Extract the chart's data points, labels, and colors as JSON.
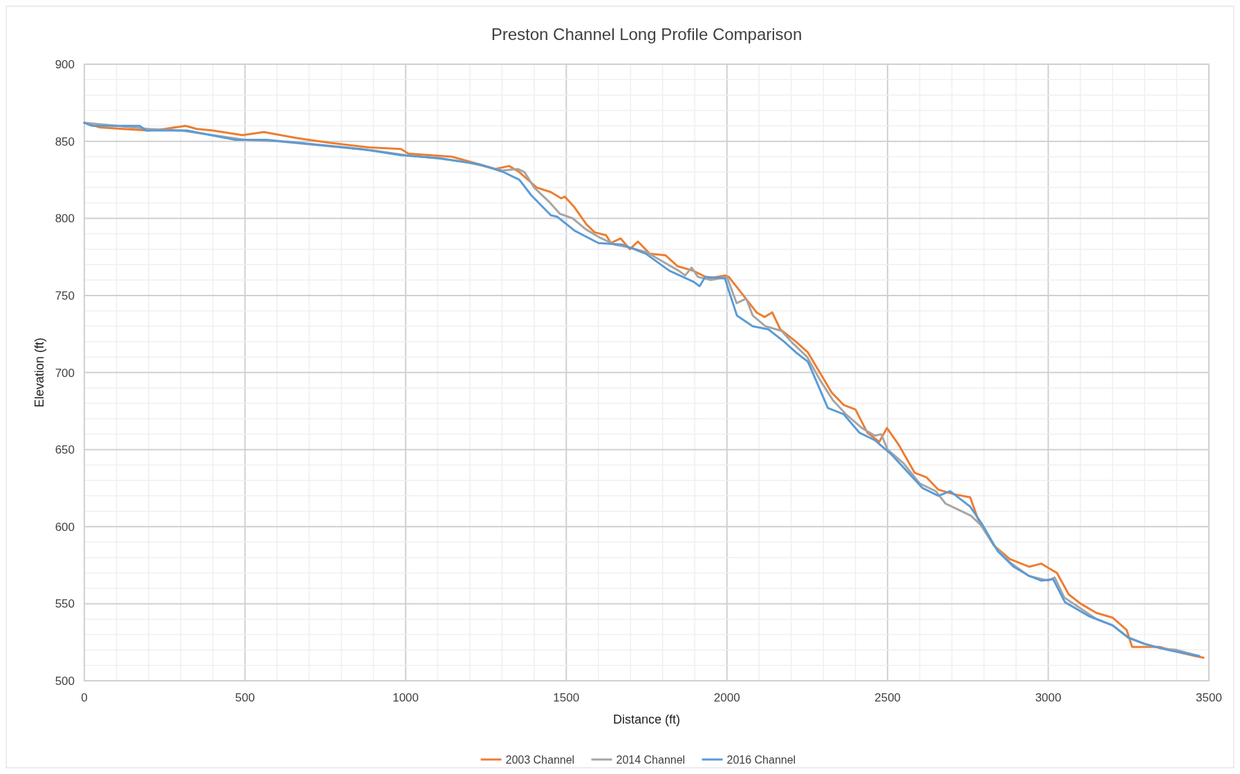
{
  "chart_data": {
    "type": "line",
    "title": "Preston Channel Long Profile Comparison",
    "xlabel": "Distance (ft)",
    "ylabel": "Elevation (ft)",
    "xlim": [
      0,
      3500
    ],
    "ylim": [
      500,
      900
    ],
    "xticks": [
      0,
      {
        "value": 100,
        "label": null
      },
      {
        "value": 200,
        "label": null
      },
      {
        "value": 300,
        "label": null
      },
      {
        "value": 400,
        "label": null
      },
      500,
      {
        "value": 600,
        "label": null
      },
      {
        "value": 700,
        "label": null
      },
      {
        "value": 800,
        "label": null
      },
      {
        "value": 900,
        "label": null
      },
      1000,
      {
        "value": 1100,
        "label": null
      },
      {
        "value": 1200,
        "label": null
      },
      {
        "value": 1300,
        "label": null
      },
      {
        "value": 1400,
        "label": null
      },
      1500,
      {
        "value": 1600,
        "label": null
      },
      {
        "value": 1700,
        "label": null
      },
      {
        "value": 1800,
        "label": null
      },
      {
        "value": 1900,
        "label": null
      },
      2000,
      {
        "value": 2100,
        "label": null
      },
      {
        "value": 2200,
        "label": null
      },
      {
        "value": 2300,
        "label": null
      },
      {
        "value": 2400,
        "label": null
      },
      2500,
      {
        "value": 2600,
        "label": null
      },
      {
        "value": 2700,
        "label": null
      },
      {
        "value": 2800,
        "label": null
      },
      {
        "value": 2900,
        "label": null
      },
      3000,
      {
        "value": 3100,
        "label": null
      },
      {
        "value": 3200,
        "label": null
      },
      {
        "value": 3300,
        "label": null
      },
      {
        "value": 3400,
        "label": null
      },
      3500
    ],
    "yticks": [
      500,
      {
        "value": 510,
        "label": null
      },
      {
        "value": 520,
        "label": null
      },
      {
        "value": 530,
        "label": null
      },
      {
        "value": 540,
        "label": null
      },
      550,
      {
        "value": 560,
        "label": null
      },
      {
        "value": 570,
        "label": null
      },
      {
        "value": 580,
        "label": null
      },
      {
        "value": 590,
        "label": null
      },
      600,
      {
        "value": 610,
        "label": null
      },
      {
        "value": 620,
        "label": null
      },
      {
        "value": 630,
        "label": null
      },
      {
        "value": 640,
        "label": null
      },
      650,
      {
        "value": 660,
        "label": null
      },
      {
        "value": 670,
        "label": null
      },
      {
        "value": 680,
        "label": null
      },
      {
        "value": 690,
        "label": null
      },
      700,
      {
        "value": 710,
        "label": null
      },
      {
        "value": 720,
        "label": null
      },
      {
        "value": 730,
        "label": null
      },
      {
        "value": 740,
        "label": null
      },
      750,
      {
        "value": 760,
        "label": null
      },
      {
        "value": 770,
        "label": null
      },
      {
        "value": 780,
        "label": null
      },
      {
        "value": 790,
        "label": null
      },
      800,
      {
        "value": 810,
        "label": null
      },
      {
        "value": 820,
        "label": null
      },
      {
        "value": 830,
        "label": null
      },
      {
        "value": 840,
        "label": null
      },
      850,
      {
        "value": 860,
        "label": null
      },
      {
        "value": 870,
        "label": null
      },
      {
        "value": 880,
        "label": null
      },
      {
        "value": 890,
        "label": null
      },
      900
    ],
    "grid": true,
    "legend": "bottom",
    "marker": "none",
    "line_style": "solid",
    "series": [
      {
        "name": "2003 Channel",
        "color": "#ed7d31",
        "x": [
          0,
          49,
          120,
          200,
          250,
          315,
          350,
          400,
          492,
          559,
          665,
          763,
          886,
          985,
          1009,
          1144,
          1231,
          1280,
          1322,
          1354,
          1408,
          1452,
          1484,
          1496,
          1526,
          1563,
          1588,
          1624,
          1639,
          1669,
          1698,
          1723,
          1760,
          1809,
          1846,
          1895,
          1944,
          1994,
          2006,
          2055,
          2092,
          2117,
          2141,
          2166,
          2215,
          2252,
          2289,
          2326,
          2363,
          2400,
          2437,
          2474,
          2498,
          2535,
          2584,
          2621,
          2658,
          2707,
          2757,
          2781,
          2830,
          2880,
          2941,
          2978,
          3027,
          3064,
          3101,
          3150,
          3200,
          3244,
          3261,
          3298,
          3347,
          3397,
          3458,
          3483
        ],
        "values": [
          862,
          859,
          858,
          857,
          858,
          860,
          858,
          857,
          854,
          856,
          852,
          849,
          846,
          845,
          842,
          840,
          835,
          832,
          834,
          830,
          820,
          817,
          813,
          814,
          807,
          796,
          791,
          789,
          784,
          787,
          780,
          785,
          777,
          776,
          769,
          766,
          761,
          763,
          762,
          749,
          739,
          736,
          739,
          728,
          720,
          713,
          700,
          687,
          679,
          676,
          661,
          655,
          664,
          653,
          635,
          632,
          624,
          621,
          619,
          605,
          588,
          579,
          574,
          576,
          570,
          556,
          550,
          544,
          541,
          533,
          522,
          522,
          522,
          519,
          516,
          515
        ]
      },
      {
        "name": "2014 Channel",
        "color": "#a5a5a5",
        "x": [
          0,
          100,
          200,
          300,
          400,
          500,
          600,
          700,
          800,
          900,
          1000,
          1100,
          1200,
          1300,
          1350,
          1370,
          1400,
          1450,
          1480,
          1520,
          1560,
          1600,
          1650,
          1700,
          1750,
          1800,
          1850,
          1870,
          1890,
          1910,
          1950,
          2000,
          2030,
          2060,
          2080,
          2120,
          2170,
          2200,
          2250,
          2290,
          2330,
          2370,
          2420,
          2460,
          2480,
          2500,
          2550,
          2600,
          2650,
          2680,
          2720,
          2760,
          2790,
          2830,
          2880,
          2940,
          3000,
          3020,
          3050,
          3100,
          3150,
          3200,
          3250,
          3300,
          3350,
          3400,
          3470
        ],
        "values": [
          862,
          860,
          858,
          857,
          854,
          851,
          850,
          848,
          846,
          844,
          841,
          839,
          836,
          831,
          832,
          830,
          820,
          810,
          803,
          800,
          793,
          788,
          783,
          781,
          778,
          772,
          766,
          763,
          768,
          762,
          760,
          762,
          745,
          748,
          737,
          730,
          727,
          720,
          710,
          695,
          682,
          673,
          664,
          659,
          660,
          650,
          641,
          628,
          623,
          615,
          611,
          607,
          601,
          588,
          577,
          568,
          565,
          567,
          554,
          547,
          540,
          536,
          528,
          524,
          521,
          520,
          516
        ]
      },
      {
        "name": "2016 Channel",
        "color": "#5b9bd5",
        "x": [
          0,
          25,
          172,
          192,
          320,
          394,
          468,
          566,
          665,
          763,
          861,
          985,
          1108,
          1231,
          1305,
          1354,
          1391,
          1452,
          1472,
          1526,
          1600,
          1674,
          1748,
          1821,
          1895,
          1915,
          1932,
          1994,
          2006,
          2031,
          2080,
          2129,
          2178,
          2215,
          2252,
          2277,
          2314,
          2363,
          2412,
          2461,
          2511,
          2560,
          2609,
          2658,
          2695,
          2757,
          2793,
          2843,
          2892,
          2941,
          2978,
          3015,
          3052,
          3126,
          3200,
          3249,
          3298,
          3372,
          3470
        ],
        "values": [
          862,
          860,
          860,
          857,
          857,
          854,
          851,
          851,
          849,
          847,
          845,
          841,
          839,
          835,
          830,
          825,
          815,
          802,
          801,
          792,
          784,
          783,
          777,
          766,
          759,
          756,
          762,
          761,
          753,
          737,
          730,
          728,
          720,
          713,
          707,
          695,
          677,
          673,
          661,
          656,
          647,
          636,
          625,
          620,
          623,
          613,
          602,
          584,
          574,
          568,
          565,
          566,
          551,
          542,
          536,
          528,
          524,
          520,
          516
        ]
      }
    ]
  }
}
